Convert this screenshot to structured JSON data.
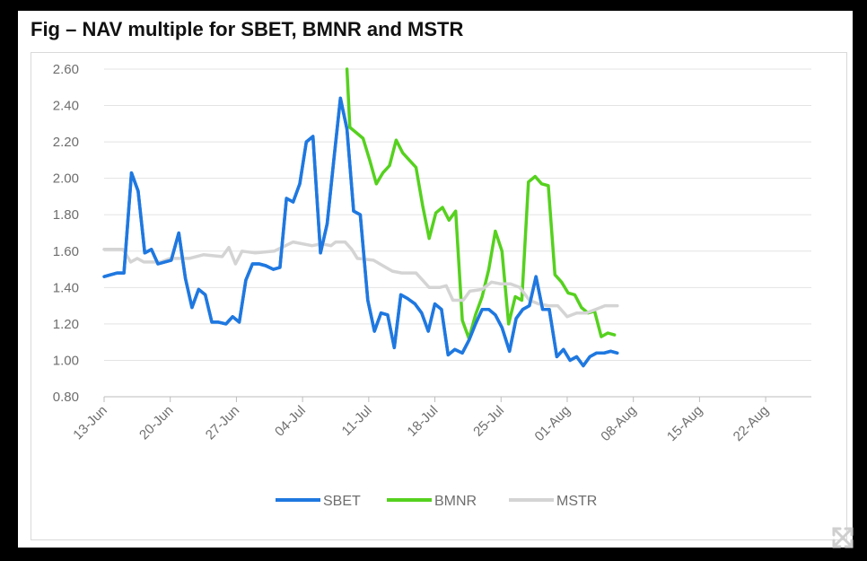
{
  "chart_data": {
    "type": "line",
    "title": "Fig – NAV multiple for SBET, BMNR and MSTR",
    "xlabel": "",
    "ylabel": "",
    "ylim": [
      0.8,
      2.6
    ],
    "yticks": [
      "2.60",
      "2.40",
      "2.20",
      "2.00",
      "1.80",
      "1.60",
      "1.40",
      "1.20",
      "1.00",
      "0.80"
    ],
    "ytick_values": [
      2.6,
      2.4,
      2.2,
      2.0,
      1.8,
      1.6,
      1.4,
      1.2,
      1.0,
      0.8
    ],
    "x_start": "13-Jun",
    "x_end": "26-Aug",
    "xticks": [
      {
        "label": "13-Jun",
        "day": 0
      },
      {
        "label": "20-Jun",
        "day": 7
      },
      {
        "label": "27-Jun",
        "day": 14
      },
      {
        "label": "04-Jul",
        "day": 21
      },
      {
        "label": "11-Jul",
        "day": 28
      },
      {
        "label": "18-Jul",
        "day": 35
      },
      {
        "label": "25-Jul",
        "day": 42
      },
      {
        "label": "01-Aug",
        "day": 49
      },
      {
        "label": "08-Aug",
        "day": 56
      },
      {
        "label": "15-Aug",
        "day": 63
      },
      {
        "label": "22-Aug",
        "day": 70
      }
    ],
    "grid": true,
    "legend_position": "bottom",
    "series": [
      {
        "name": "SBET",
        "color": "#1f78e0",
        "points": [
          [
            0,
            1.46
          ],
          [
            0.7,
            1.47
          ],
          [
            1.4,
            1.48
          ],
          [
            2.1,
            1.48
          ],
          [
            2.9,
            2.03
          ],
          [
            3.6,
            1.93
          ],
          [
            4.3,
            1.59
          ],
          [
            5.0,
            1.61
          ],
          [
            5.7,
            1.53
          ],
          [
            6.4,
            1.54
          ],
          [
            7.1,
            1.55
          ],
          [
            7.9,
            1.7
          ],
          [
            8.6,
            1.45
          ],
          [
            9.3,
            1.29
          ],
          [
            10.0,
            1.39
          ],
          [
            10.7,
            1.36
          ],
          [
            11.4,
            1.21
          ],
          [
            12.1,
            1.21
          ],
          [
            12.9,
            1.2
          ],
          [
            13.6,
            1.24
          ],
          [
            14.3,
            1.21
          ],
          [
            15.0,
            1.44
          ],
          [
            15.7,
            1.53
          ],
          [
            16.4,
            1.53
          ],
          [
            17.1,
            1.52
          ],
          [
            17.9,
            1.5
          ],
          [
            18.6,
            1.51
          ],
          [
            19.3,
            1.89
          ],
          [
            20.0,
            1.87
          ],
          [
            20.7,
            1.97
          ],
          [
            21.4,
            2.2
          ],
          [
            22.1,
            2.23
          ],
          [
            22.9,
            1.59
          ],
          [
            23.6,
            1.75
          ],
          [
            24.3,
            2.1
          ],
          [
            25.0,
            2.44
          ],
          [
            25.7,
            2.27
          ],
          [
            26.4,
            1.82
          ],
          [
            27.1,
            1.8
          ],
          [
            27.9,
            1.33
          ],
          [
            28.6,
            1.16
          ],
          [
            29.3,
            1.26
          ],
          [
            30.0,
            1.25
          ],
          [
            30.7,
            1.07
          ],
          [
            31.4,
            1.36
          ],
          [
            32.1,
            1.34
          ],
          [
            32.9,
            1.31
          ],
          [
            33.6,
            1.26
          ],
          [
            34.3,
            1.16
          ],
          [
            35.0,
            1.31
          ],
          [
            35.7,
            1.28
          ],
          [
            36.4,
            1.03
          ],
          [
            37.1,
            1.06
          ],
          [
            37.9,
            1.04
          ],
          [
            38.6,
            1.11
          ],
          [
            39.3,
            1.2
          ],
          [
            40.0,
            1.28
          ],
          [
            40.7,
            1.28
          ],
          [
            41.4,
            1.25
          ],
          [
            42.1,
            1.18
          ],
          [
            42.9,
            1.05
          ],
          [
            43.6,
            1.23
          ],
          [
            44.3,
            1.28
          ],
          [
            45.0,
            1.3
          ],
          [
            45.7,
            1.46
          ],
          [
            46.4,
            1.28
          ],
          [
            47.1,
            1.28
          ],
          [
            47.9,
            1.02
          ],
          [
            48.6,
            1.06
          ],
          [
            49.3,
            1.0
          ],
          [
            50.0,
            1.02
          ],
          [
            50.7,
            0.97
          ],
          [
            51.4,
            1.02
          ],
          [
            52.1,
            1.04
          ],
          [
            52.9,
            1.04
          ],
          [
            53.6,
            1.05
          ],
          [
            54.3,
            1.04
          ]
        ]
      },
      {
        "name": "BMNR",
        "color": "#55d11e",
        "points": [
          [
            25.7,
            2.6
          ],
          [
            26.0,
            2.28
          ],
          [
            26.7,
            2.25
          ],
          [
            27.4,
            2.22
          ],
          [
            28.1,
            2.1
          ],
          [
            28.8,
            1.97
          ],
          [
            29.5,
            2.03
          ],
          [
            30.2,
            2.07
          ],
          [
            30.9,
            2.21
          ],
          [
            31.6,
            2.14
          ],
          [
            32.3,
            2.1
          ],
          [
            33.0,
            2.06
          ],
          [
            33.7,
            1.85
          ],
          [
            34.4,
            1.67
          ],
          [
            35.1,
            1.81
          ],
          [
            35.8,
            1.84
          ],
          [
            36.5,
            1.77
          ],
          [
            37.2,
            1.82
          ],
          [
            37.9,
            1.22
          ],
          [
            38.6,
            1.12
          ],
          [
            39.3,
            1.25
          ],
          [
            40.0,
            1.35
          ],
          [
            40.7,
            1.5
          ],
          [
            41.4,
            1.71
          ],
          [
            42.1,
            1.6
          ],
          [
            42.8,
            1.2
          ],
          [
            43.5,
            1.35
          ],
          [
            44.2,
            1.33
          ],
          [
            44.9,
            1.98
          ],
          [
            45.6,
            2.01
          ],
          [
            46.3,
            1.97
          ],
          [
            47.0,
            1.96
          ],
          [
            47.7,
            1.47
          ],
          [
            48.4,
            1.43
          ],
          [
            49.1,
            1.37
          ],
          [
            49.8,
            1.36
          ],
          [
            50.5,
            1.29
          ],
          [
            51.2,
            1.26
          ],
          [
            51.9,
            1.27
          ],
          [
            52.6,
            1.13
          ],
          [
            53.3,
            1.15
          ],
          [
            54.0,
            1.14
          ]
        ]
      },
      {
        "name": "MSTR",
        "color": "#d4d4d4",
        "points": [
          [
            0,
            1.61
          ],
          [
            2.0,
            1.61
          ],
          [
            2.8,
            1.54
          ],
          [
            3.5,
            1.56
          ],
          [
            4.2,
            1.54
          ],
          [
            6.0,
            1.54
          ],
          [
            7.0,
            1.56
          ],
          [
            9.0,
            1.56
          ],
          [
            10.5,
            1.58
          ],
          [
            12.5,
            1.57
          ],
          [
            13.2,
            1.62
          ],
          [
            13.9,
            1.53
          ],
          [
            14.6,
            1.6
          ],
          [
            16.0,
            1.59
          ],
          [
            18.0,
            1.6
          ],
          [
            20.0,
            1.65
          ],
          [
            22.0,
            1.63
          ],
          [
            23.0,
            1.64
          ],
          [
            24.0,
            1.63
          ],
          [
            24.5,
            1.65
          ],
          [
            25.5,
            1.65
          ],
          [
            26.2,
            1.61
          ],
          [
            26.8,
            1.56
          ],
          [
            28.5,
            1.55
          ],
          [
            29.5,
            1.52
          ],
          [
            30.5,
            1.49
          ],
          [
            31.5,
            1.48
          ],
          [
            33.0,
            1.48
          ],
          [
            33.7,
            1.44
          ],
          [
            34.4,
            1.4
          ],
          [
            35.5,
            1.4
          ],
          [
            36.2,
            1.41
          ],
          [
            36.9,
            1.33
          ],
          [
            38.0,
            1.33
          ],
          [
            38.7,
            1.38
          ],
          [
            40.0,
            1.39
          ],
          [
            41.0,
            1.43
          ],
          [
            42.0,
            1.42
          ],
          [
            43.0,
            1.42
          ],
          [
            44.0,
            1.4
          ],
          [
            45.0,
            1.33
          ],
          [
            46.0,
            1.31
          ],
          [
            47.0,
            1.3
          ],
          [
            48.0,
            1.3
          ],
          [
            49.0,
            1.24
          ],
          [
            50.0,
            1.26
          ],
          [
            51.0,
            1.26
          ],
          [
            52.0,
            1.28
          ],
          [
            53.0,
            1.3
          ],
          [
            54.3,
            1.3
          ]
        ]
      }
    ]
  },
  "icons": {
    "expand": "expand-arrows-icon"
  }
}
